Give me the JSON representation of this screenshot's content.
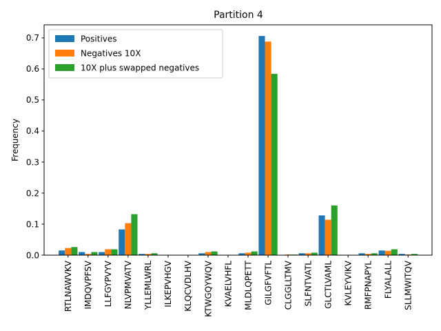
{
  "chart_data": {
    "type": "bar",
    "title": "Partition 4",
    "xlabel": "",
    "ylabel": "Frequency",
    "ylim": [
      0,
      0.742
    ],
    "yticks": [
      "0.0",
      "0.1",
      "0.2",
      "0.3",
      "0.4",
      "0.5",
      "0.6",
      "0.7"
    ],
    "legend_position": "top-left",
    "grid": false,
    "categories": [
      "RTLNAWVKV",
      "IMDQVPFSV",
      "LLFGYPVYV",
      "NLVPMVATV",
      "YLLEMLWRL",
      "ILKEPVHGV",
      "KLQCVDLHV",
      "KTWGQYWQV",
      "KVAELVHFL",
      "MLDLQPETT",
      "GILGFVFTL",
      "CLGGLLTMV",
      "SLFNTVATL",
      "GLCTLVAML",
      "KVLEYVIKV",
      "RMFPNAPYL",
      "FLYALALL",
      "SLLMWITQV"
    ],
    "series": [
      {
        "name": "Positives",
        "color": "#1f77b4",
        "values": [
          0.015,
          0.01,
          0.01,
          0.083,
          0.004,
          0.0,
          0.0,
          0.006,
          0.0,
          0.006,
          0.706,
          0.001,
          0.006,
          0.128,
          0.0,
          0.006,
          0.015,
          0.004
        ]
      },
      {
        "name": "Negatives 10X",
        "color": "#ff7f0e",
        "values": [
          0.023,
          0.004,
          0.019,
          0.103,
          0.004,
          0.0,
          0.0,
          0.01,
          0.0,
          0.008,
          0.688,
          0.002,
          0.006,
          0.114,
          0.0,
          0.004,
          0.014,
          0.002
        ]
      },
      {
        "name": "10X plus swapped negatives",
        "color": "#2ca02c",
        "values": [
          0.026,
          0.01,
          0.019,
          0.132,
          0.006,
          0.0,
          0.0,
          0.012,
          0.0,
          0.012,
          0.584,
          0.002,
          0.008,
          0.16,
          0.0,
          0.006,
          0.019,
          0.004
        ]
      }
    ]
  }
}
